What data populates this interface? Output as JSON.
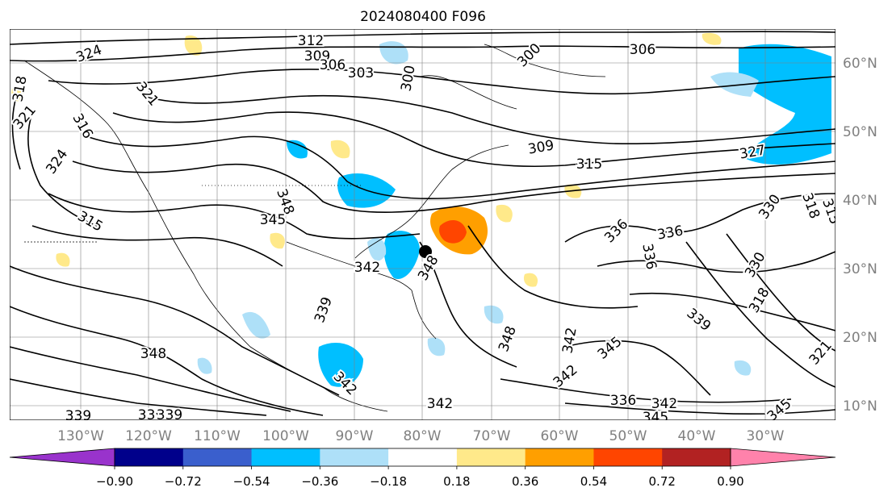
{
  "title": "2024080400 F096",
  "map": {
    "lon_labels": [
      "130°W",
      "120°W",
      "110°W",
      "100°W",
      "90°W",
      "80°W",
      "70°W",
      "60°W",
      "50°W",
      "40°W",
      "30°W"
    ],
    "lat_labels": [
      "60°N",
      "50°N",
      "40°N",
      "30°N",
      "20°N",
      "10°N"
    ],
    "contour_labels": [
      "324",
      "312",
      "309",
      "306",
      "303",
      "300",
      "300",
      "306",
      "318",
      "321",
      "321",
      "316",
      "324",
      "315",
      "309",
      "315",
      "327",
      "330",
      "318",
      "315",
      "348",
      "345",
      "342",
      "348",
      "336",
      "336",
      "336",
      "330",
      "318",
      "339",
      "339",
      "342",
      "342",
      "345",
      "348",
      "342",
      "348",
      "339",
      "342",
      "339",
      "336",
      "342",
      "345",
      "345",
      "321",
      "339"
    ],
    "storm_marker": "storm-center",
    "colors": {
      "contour": "#000000",
      "grid": "#808080",
      "axis_label": "#808080"
    }
  },
  "colorbar": {
    "ticks": [
      "−0.90",
      "−0.72",
      "−0.54",
      "−0.36",
      "−0.18",
      "0.18",
      "0.36",
      "0.54",
      "0.72",
      "0.90"
    ],
    "colors": [
      "#9933cc",
      "#00008b",
      "#3a5fcd",
      "#00bfff",
      "#aee0f8",
      "#ffffff",
      "#ffe98a",
      "#ff9f00",
      "#ff4500",
      "#b22222",
      "#ff82ab"
    ]
  }
}
